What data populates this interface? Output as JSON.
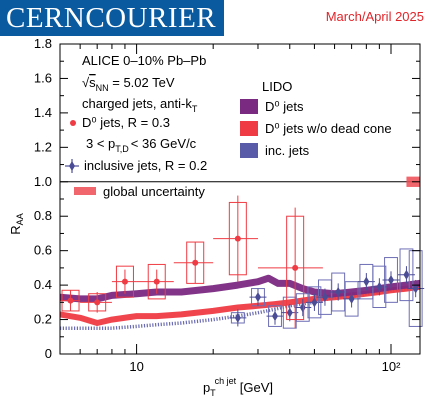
{
  "header": {
    "logo": "CERNCOURIER",
    "issue": "March/April 2025"
  },
  "colors": {
    "purple": "#7b2a82",
    "red": "#ef3b43",
    "blue": "#5a5ba8",
    "inclusive_markers": "#4b4c96",
    "blue_box": "#6d6eb5"
  },
  "chart_data": {
    "type": "scatter",
    "xlabel": "p_T^{ch jet} [GeV]",
    "xlabel_main": "p",
    "xlabel_sub": "T",
    "xlabel_sup": "ch jet",
    "xlabel_unit": " [GeV]",
    "ylabel": "R_AA",
    "ylabel_main": "R",
    "ylabel_sub": "AA",
    "xscale": "log",
    "xlim": [
      5,
      130
    ],
    "ylim": [
      0,
      1.8
    ],
    "yticks": [
      "0",
      "0.2",
      "0.4",
      "0.6",
      "0.8",
      "1.0",
      "1.2",
      "1.4",
      "1.6",
      "1.8"
    ],
    "xticks": [
      "10",
      "10²"
    ],
    "reference_line": 1.0,
    "annotations": {
      "line1": "ALICE 0–10% Pb–Pb",
      "line2_prefix": "√",
      "line2_var": "s",
      "line2_sub": "NN",
      "line2_rest": " = 5.02 TeV",
      "line3_main": "charged jets, anti-k",
      "line3_sub": "T",
      "line4": "D⁰ jets, R = 0.3",
      "line5_pre": "3 < p",
      "line5_sub": "T,D",
      "line5_post": "< 36 GeV/c",
      "line6": "inclusive jets, R = 0.2",
      "global_uncertainty": "global uncertainty"
    },
    "legend": {
      "title": "LIDO",
      "placement": "upper-middle",
      "entries": [
        "D⁰ jets",
        "D⁰ jets w/o dead cone",
        "inc. jets"
      ]
    },
    "series": [
      {
        "name": "D⁰ jets, R = 0.3",
        "x": [
          5.5,
          7,
          9,
          12,
          17,
          25,
          42
        ],
        "y": [
          0.31,
          0.3,
          0.42,
          0.42,
          0.53,
          0.67,
          0.5
        ],
        "xerr": [
          0.5,
          1.0,
          1.0,
          2.0,
          3.0,
          5.0,
          12.0
        ],
        "yerr": [
          0.06,
          0.06,
          0.07,
          0.07,
          0.12,
          0.25,
          0.35
        ],
        "box_half": [
          0.06,
          0.05,
          0.09,
          0.1,
          0.12,
          0.21,
          0.3
        ]
      },
      {
        "name": "inclusive jets, R = 0.2",
        "x": [
          25,
          30,
          35,
          40,
          45,
          50,
          55,
          62,
          70,
          80,
          90,
          100,
          115,
          125
        ],
        "y": [
          0.21,
          0.33,
          0.22,
          0.24,
          0.27,
          0.3,
          0.33,
          0.36,
          0.32,
          0.42,
          0.39,
          0.43,
          0.46,
          0.38
        ],
        "box_half": [
          0.03,
          0.05,
          0.06,
          0.09,
          0.08,
          0.09,
          0.1,
          0.11,
          0.1,
          0.1,
          0.12,
          0.13,
          0.15,
          0.22
        ]
      }
    ],
    "model_curves": [
      {
        "name": "D⁰ jets",
        "x": [
          5,
          6,
          7,
          8,
          10,
          12,
          15,
          20,
          25,
          30,
          33,
          36,
          40,
          45,
          50,
          60,
          70,
          80,
          90,
          100,
          115,
          130
        ],
        "y": [
          0.33,
          0.32,
          0.32,
          0.34,
          0.35,
          0.36,
          0.36,
          0.38,
          0.4,
          0.42,
          0.44,
          0.41,
          0.41,
          0.38,
          0.36,
          0.35,
          0.36,
          0.37,
          0.38,
          0.39,
          0.4,
          0.41
        ]
      },
      {
        "name": "D⁰ jets w/o dead cone",
        "x": [
          5,
          6,
          7,
          8,
          10,
          12,
          15,
          20,
          25,
          30,
          35,
          40,
          50,
          60,
          70,
          80,
          90,
          100,
          115,
          130
        ],
        "y": [
          0.23,
          0.21,
          0.18,
          0.2,
          0.22,
          0.22,
          0.23,
          0.25,
          0.27,
          0.28,
          0.29,
          0.3,
          0.32,
          0.33,
          0.34,
          0.35,
          0.36,
          0.37,
          0.38,
          0.39
        ]
      },
      {
        "name": "inc. jets",
        "x": [
          5,
          6,
          7,
          8,
          10,
          12,
          15,
          20,
          25,
          30,
          35,
          40,
          50,
          60,
          70,
          80,
          90,
          100,
          115,
          130
        ],
        "y": [
          0.15,
          0.15,
          0.15,
          0.15,
          0.16,
          0.17,
          0.18,
          0.2,
          0.22,
          0.24,
          0.26,
          0.28,
          0.3,
          0.33,
          0.34,
          0.35,
          0.36,
          0.37,
          0.38,
          0.39
        ]
      }
    ],
    "global_uncertainty_box": {
      "x": [
        115,
        130
      ],
      "y": [
        0.97,
        1.03
      ]
    }
  }
}
